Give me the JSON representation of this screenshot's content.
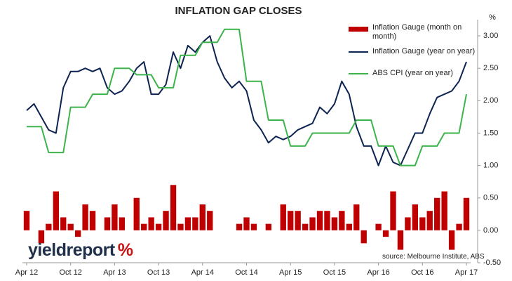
{
  "chart_data": {
    "type": "bar",
    "title": "INFLATION GAP CLOSES",
    "y_label": "%",
    "categories": [
      "Apr 12",
      null,
      null,
      null,
      null,
      null,
      "Oct 12",
      null,
      null,
      null,
      null,
      null,
      "Apr 13",
      null,
      null,
      null,
      null,
      null,
      "Oct 13",
      null,
      null,
      null,
      null,
      null,
      "Apr 14",
      null,
      null,
      null,
      null,
      null,
      "Oct 14",
      null,
      null,
      null,
      null,
      null,
      "Apr 15",
      null,
      null,
      null,
      null,
      null,
      "Oct 15",
      null,
      null,
      null,
      null,
      null,
      "Apr 16",
      null,
      null,
      null,
      null,
      null,
      "Oct 16",
      null,
      null,
      null,
      null,
      null,
      "Apr 17"
    ],
    "series": [
      {
        "name": "Inflation Gauge (month on month)",
        "type": "bar",
        "color": "#c00000",
        "values": [
          0.3,
          0,
          -0.2,
          0.1,
          0.6,
          0.2,
          0.1,
          -0.1,
          0.4,
          0.3,
          0,
          0.2,
          0.4,
          0.2,
          0,
          0.5,
          0.1,
          0.2,
          0.1,
          0.3,
          0.7,
          0.1,
          0.2,
          0.2,
          0.4,
          0.3,
          0,
          0,
          0,
          0.1,
          0.2,
          0.1,
          0,
          0.1,
          0,
          0.4,
          0.3,
          0.3,
          0.1,
          0.2,
          0.3,
          0.3,
          0.2,
          0.3,
          0.1,
          0.4,
          -0.2,
          0,
          0.1,
          -0.1,
          0.6,
          -0.3,
          0.2,
          0.4,
          0.2,
          0.3,
          0.5,
          0.6,
          -0.3,
          0.1,
          0.5
        ]
      },
      {
        "name": "Inflation Gauge (year on year)",
        "type": "line",
        "color": "#0d2352",
        "values": [
          1.85,
          1.95,
          1.75,
          1.55,
          1.5,
          2.2,
          2.45,
          2.45,
          2.5,
          2.45,
          2.5,
          2.2,
          2.1,
          2.15,
          2.3,
          2.5,
          2.6,
          2.1,
          2.1,
          2.25,
          2.75,
          2.5,
          2.85,
          2.75,
          2.9,
          3.0,
          2.6,
          2.35,
          2.2,
          2.3,
          2.15,
          1.7,
          1.55,
          1.35,
          1.45,
          1.4,
          1.45,
          1.55,
          1.6,
          1.65,
          1.9,
          1.8,
          1.95,
          2.3,
          2.1,
          1.6,
          1.3,
          1.3,
          1.0,
          1.3,
          1.05,
          1.0,
          1.25,
          1.5,
          1.5,
          1.8,
          2.05,
          2.1,
          2.15,
          2.3,
          2.6
        ]
      },
      {
        "name": "ABS CPI (year on year)",
        "type": "line",
        "color": "#3cb44b",
        "values": [
          1.6,
          1.6,
          1.6,
          1.2,
          1.2,
          1.2,
          1.9,
          1.9,
          1.9,
          2.1,
          2.1,
          2.1,
          2.5,
          2.5,
          2.5,
          2.4,
          2.4,
          2.4,
          2.2,
          2.2,
          2.2,
          2.7,
          2.7,
          2.7,
          2.9,
          2.9,
          2.9,
          3.1,
          3.1,
          3.1,
          2.3,
          2.3,
          2.3,
          1.7,
          1.7,
          1.7,
          1.3,
          1.3,
          1.3,
          1.5,
          1.5,
          1.5,
          1.5,
          1.5,
          1.5,
          1.7,
          1.7,
          1.7,
          1.3,
          1.3,
          1.3,
          1.0,
          1.0,
          1.0,
          1.3,
          1.3,
          1.3,
          1.5,
          1.5,
          1.5,
          2.1
        ]
      }
    ],
    "ylim": [
      -0.5,
      3.25
    ],
    "yticks": [
      {
        "value": -0.5,
        "label": "-0.50"
      },
      {
        "value": 0,
        "label": "0.00"
      },
      {
        "value": 0.5,
        "label": "0.50"
      },
      {
        "value": 1,
        "label": "1.00"
      },
      {
        "value": 1.5,
        "label": "1.50"
      },
      {
        "value": 2,
        "label": "2.00"
      },
      {
        "value": 2.5,
        "label": "2.50"
      },
      {
        "value": 3,
        "label": "3.00"
      }
    ],
    "grid": false,
    "legend": "top-right"
  },
  "watermark": {
    "text": "yieldreport",
    "symbol": "%"
  },
  "source": "source: Melbourne Institute, ABS"
}
